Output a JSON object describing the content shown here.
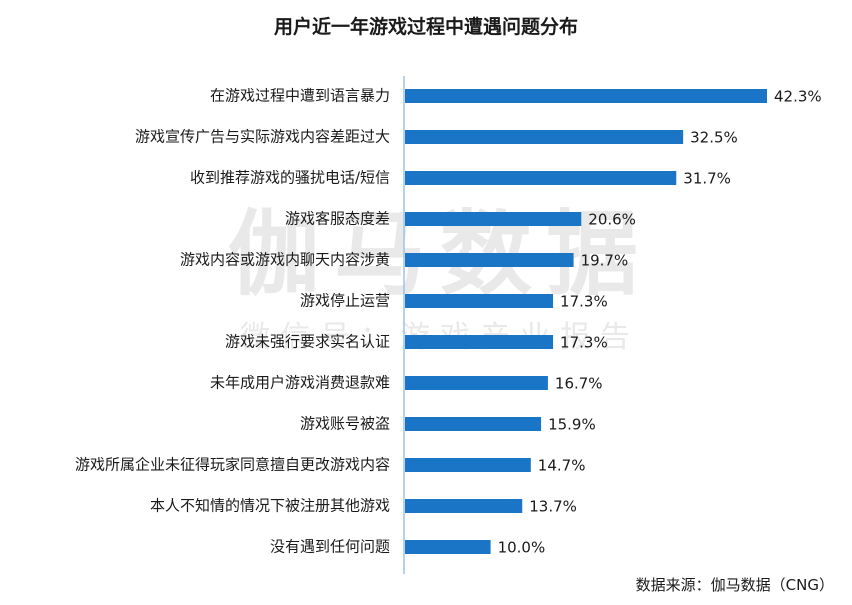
{
  "chart_data": {
    "type": "bar",
    "orientation": "horizontal",
    "title": "用户近一年游戏过程中遭遇问题分布",
    "categories": [
      "在游戏过程中遭到语言暴力",
      "游戏宣传广告与实际游戏内容差距过大",
      "收到推荐游戏的骚扰电话/短信",
      "游戏客服态度差",
      "游戏内容或游戏内聊天内容涉黄",
      "游戏停止运营",
      "游戏未强行要求实名认证",
      "未年成用户游戏消费退款难",
      "游戏账号被盗",
      "游戏所属企业未征得玩家同意擅自更改游戏内容",
      "本人不知情的情况下被注册其他游戏",
      "没有遇到任何问题"
    ],
    "values": [
      42.3,
      32.5,
      31.7,
      20.6,
      19.7,
      17.3,
      17.3,
      16.7,
      15.9,
      14.7,
      13.7,
      10.0
    ],
    "value_labels": [
      "42.3%",
      "32.5%",
      "31.7%",
      "20.6%",
      "19.7%",
      "17.3%",
      "17.3%",
      "16.7%",
      "15.9%",
      "14.7%",
      "13.7%",
      "10.0%"
    ],
    "bar_color": "#1b75c6",
    "axis_color": "#9dc3e6",
    "xlim": [
      0,
      45
    ]
  },
  "watermark": {
    "main": "伽马数据",
    "sub": "微信号：游戏产业报告"
  },
  "source": "数据来源：伽马数据（CNG）"
}
